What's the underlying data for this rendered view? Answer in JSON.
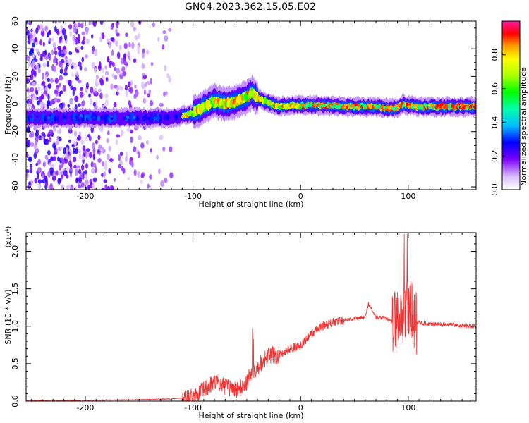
{
  "title": "GN04.2023.362.15.05.E02",
  "chart_data": [
    {
      "type": "heatmap",
      "xlabel": "Height of straight line (km)",
      "ylabel": "Frequency (Hz)",
      "xlim": [
        -255,
        163
      ],
      "ylim": [
        -62,
        60
      ],
      "xticks": [
        -200,
        -100,
        0,
        100
      ],
      "yticks": [
        -60,
        -40,
        -20,
        0,
        20,
        40,
        60
      ],
      "colorbar": {
        "label": "Normalized spectral amplitude",
        "range": [
          0,
          1
        ],
        "ticks": [
          0.0,
          0.2,
          0.4,
          0.6,
          0.8
        ]
      },
      "ridge": {
        "x": [
          -255,
          -200,
          -150,
          -120,
          -100,
          -90,
          -80,
          -70,
          -60,
          -50,
          -45,
          -40,
          -30,
          -20,
          -10,
          0,
          20,
          50,
          70,
          80,
          90,
          95,
          100,
          110,
          130,
          163
        ],
        "freq": [
          -10,
          -10,
          -10,
          -10,
          -7,
          -2,
          2,
          0,
          2,
          5,
          8,
          4,
          1,
          -2,
          -1,
          -1,
          -1,
          -2,
          -2,
          -3,
          -3,
          0,
          -1,
          -2,
          -2,
          -2
        ]
      },
      "grid": false
    },
    {
      "type": "line",
      "xlabel": "Height of straight line (km)",
      "ylabel": "SNR (10 * v/v)",
      "y_scale_note": "(x10⁴)",
      "xlim": [
        -255,
        163
      ],
      "ylim": [
        0,
        2.25
      ],
      "xticks": [
        -200,
        -100,
        0,
        100
      ],
      "yticks": [
        0.0,
        0.5,
        1.0,
        1.5,
        2.0
      ],
      "series": [
        {
          "color": "#ee3333",
          "x": [
            -255,
            -200,
            -150,
            -120,
            -100,
            -90,
            -80,
            -70,
            -60,
            -55,
            -50,
            -45,
            -40,
            -35,
            -30,
            -20,
            -10,
            0,
            10,
            20,
            30,
            40,
            50,
            60,
            63,
            70,
            80,
            85,
            90,
            95,
            98,
            100,
            102,
            105,
            110,
            120,
            140,
            163
          ],
          "values": [
            0.01,
            0.01,
            0.02,
            0.03,
            0.05,
            0.15,
            0.25,
            0.2,
            0.15,
            0.18,
            0.25,
            0.4,
            0.45,
            0.55,
            0.6,
            0.62,
            0.7,
            0.75,
            0.9,
            1.0,
            1.05,
            1.08,
            1.1,
            1.12,
            1.3,
            1.12,
            1.1,
            1.05,
            1.1,
            1.15,
            1.2,
            1.25,
            1.2,
            1.05,
            1.05,
            1.03,
            1.02,
            1.0
          ]
        }
      ],
      "grid": false
    }
  ]
}
